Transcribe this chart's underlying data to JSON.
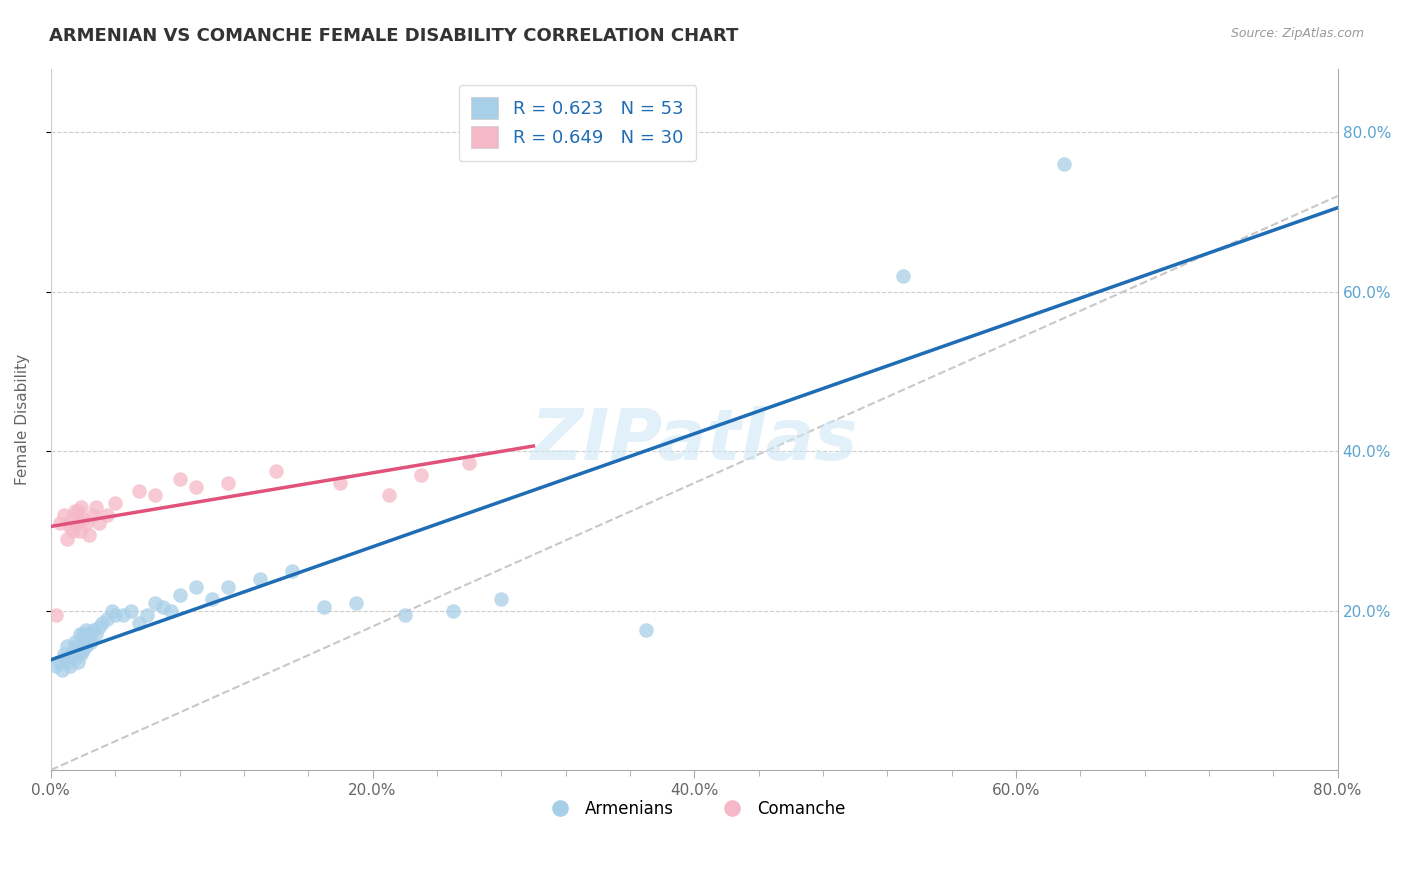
{
  "title": "ARMENIAN VS COMANCHE FEMALE DISABILITY CORRELATION CHART",
  "source": "Source: ZipAtlas.com",
  "ylabel": "Female Disability",
  "xlim": [
    0.0,
    0.8
  ],
  "ylim": [
    0.0,
    0.88
  ],
  "xtick_labels": [
    "0.0%",
    "",
    "",
    "",
    "",
    "20.0%",
    "",
    "",
    "",
    "",
    "40.0%",
    "",
    "",
    "",
    "",
    "60.0%",
    "",
    "",
    "",
    "",
    "80.0%"
  ],
  "xtick_vals": [
    0.0,
    0.04,
    0.08,
    0.12,
    0.16,
    0.2,
    0.24,
    0.28,
    0.32,
    0.36,
    0.4,
    0.44,
    0.48,
    0.52,
    0.56,
    0.6,
    0.64,
    0.68,
    0.72,
    0.76,
    0.8
  ],
  "ytick_right_labels": [
    "20.0%",
    "40.0%",
    "60.0%",
    "80.0%"
  ],
  "ytick_vals": [
    0.2,
    0.4,
    0.6,
    0.8
  ],
  "armenian_R": 0.623,
  "armenian_N": 53,
  "comanche_R": 0.649,
  "comanche_N": 30,
  "armenian_color": "#a8cfe8",
  "comanche_color": "#f5b8c8",
  "armenian_line_color": "#1f6db5",
  "comanche_line_color": "#e0527a",
  "regression_line_color": "#c8c8c8",
  "background_color": "#ffffff",
  "watermark": "ZIPatlas",
  "armenian_x": [
    0.003,
    0.005,
    0.007,
    0.008,
    0.009,
    0.01,
    0.01,
    0.012,
    0.013,
    0.014,
    0.015,
    0.015,
    0.016,
    0.017,
    0.018,
    0.018,
    0.019,
    0.02,
    0.02,
    0.021,
    0.022,
    0.022,
    0.023,
    0.024,
    0.025,
    0.026,
    0.028,
    0.03,
    0.032,
    0.035,
    0.038,
    0.04,
    0.045,
    0.05,
    0.055,
    0.06,
    0.065,
    0.07,
    0.075,
    0.08,
    0.09,
    0.1,
    0.11,
    0.13,
    0.15,
    0.17,
    0.19,
    0.22,
    0.25,
    0.28,
    0.37,
    0.53,
    0.63
  ],
  "armenian_y": [
    0.13,
    0.135,
    0.125,
    0.145,
    0.14,
    0.135,
    0.155,
    0.13,
    0.145,
    0.15,
    0.14,
    0.16,
    0.155,
    0.135,
    0.15,
    0.17,
    0.145,
    0.15,
    0.17,
    0.16,
    0.155,
    0.175,
    0.165,
    0.17,
    0.16,
    0.175,
    0.17,
    0.18,
    0.185,
    0.19,
    0.2,
    0.195,
    0.195,
    0.2,
    0.185,
    0.195,
    0.21,
    0.205,
    0.2,
    0.22,
    0.23,
    0.215,
    0.23,
    0.24,
    0.25,
    0.205,
    0.21,
    0.195,
    0.2,
    0.215,
    0.175,
    0.62,
    0.76
  ],
  "comanche_x": [
    0.003,
    0.006,
    0.008,
    0.01,
    0.012,
    0.013,
    0.014,
    0.015,
    0.016,
    0.017,
    0.018,
    0.019,
    0.02,
    0.022,
    0.024,
    0.026,
    0.028,
    0.03,
    0.035,
    0.04,
    0.055,
    0.065,
    0.08,
    0.09,
    0.11,
    0.14,
    0.18,
    0.21,
    0.23,
    0.26
  ],
  "comanche_y": [
    0.195,
    0.31,
    0.32,
    0.29,
    0.305,
    0.315,
    0.3,
    0.325,
    0.31,
    0.325,
    0.3,
    0.33,
    0.315,
    0.31,
    0.295,
    0.32,
    0.33,
    0.31,
    0.32,
    0.335,
    0.35,
    0.345,
    0.365,
    0.355,
    0.36,
    0.375,
    0.36,
    0.345,
    0.37,
    0.385
  ]
}
